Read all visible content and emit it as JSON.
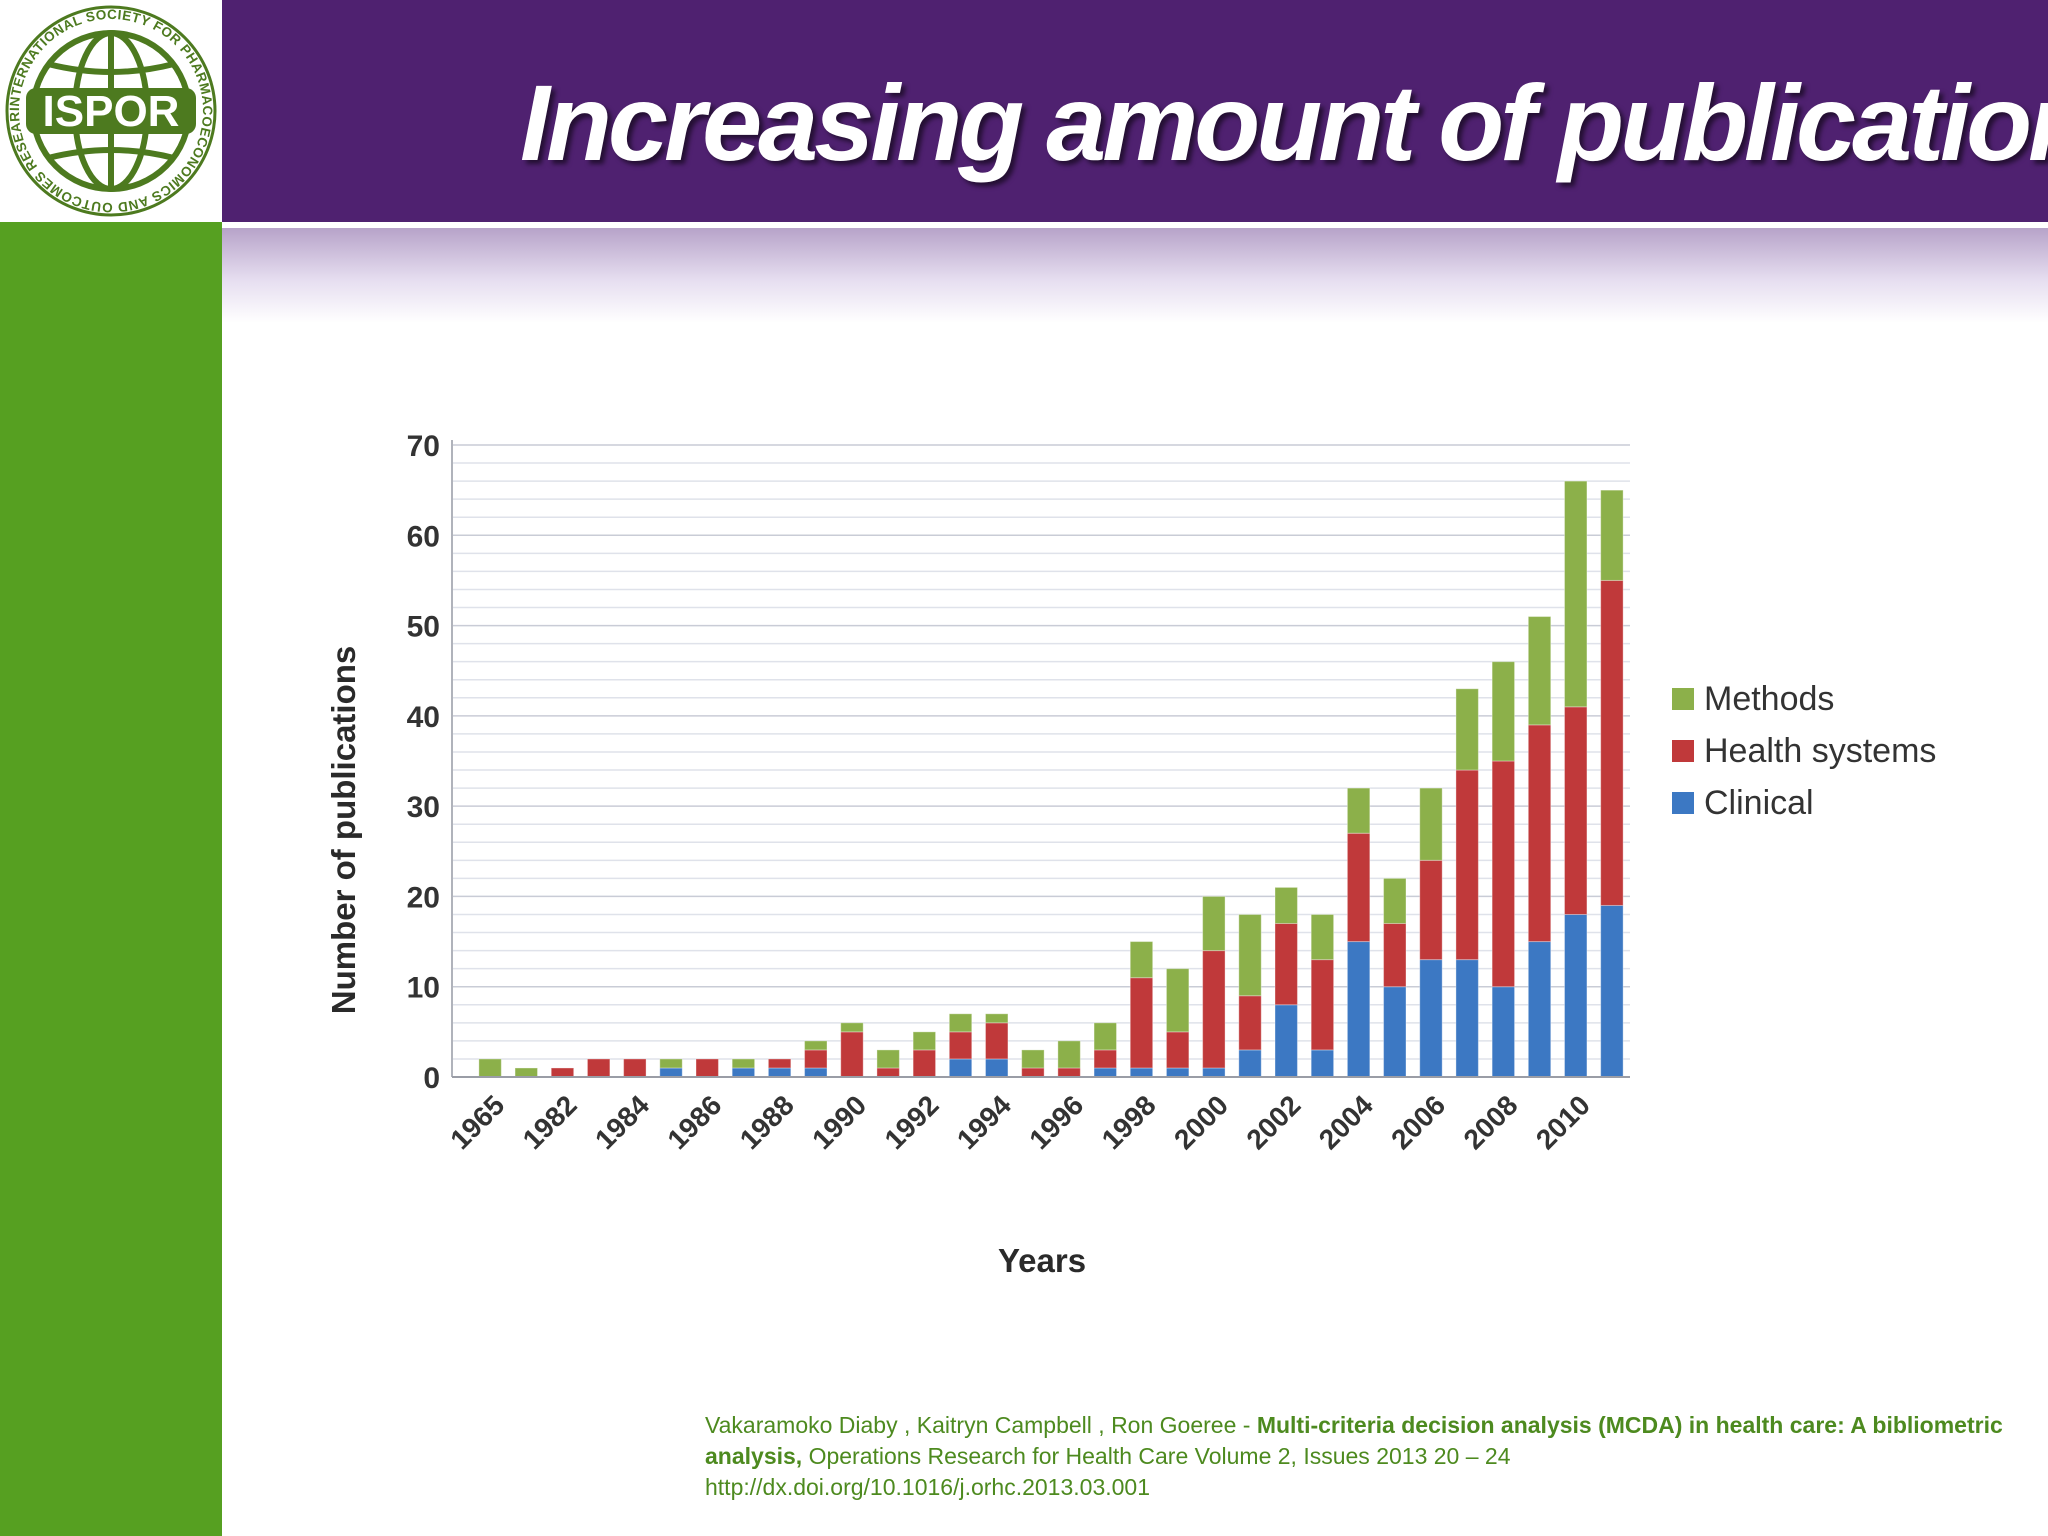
{
  "slide": {
    "title": "Increasing amount of publications",
    "colors": {
      "header": "#4f2170",
      "sidebar": "#56a021",
      "citation_text": "#4d8a1f"
    }
  },
  "logo": {
    "text": "ISPOR",
    "ring_text": "INTERNATIONAL SOCIETY FOR PHARMACOECONOMICS AND OUTCOMES RESEARCH•"
  },
  "chart_data": {
    "type": "bar",
    "stacked": true,
    "xlabel": "Years",
    "ylabel": "Number of publications",
    "ylim": [
      0,
      70
    ],
    "yticks": [
      0,
      10,
      20,
      30,
      40,
      50,
      60,
      70
    ],
    "x_tick_labels": [
      "1965",
      "1982",
      "1984",
      "1986",
      "1988",
      "1990",
      "1992",
      "1994",
      "1996",
      "1998",
      "2000",
      "2002",
      "2004",
      "2006",
      "2008",
      "2010"
    ],
    "categories": [
      "1965",
      "1981",
      "1982",
      "1983",
      "1984",
      "1985",
      "1986",
      "1987",
      "1988",
      "1989",
      "1990",
      "1991",
      "1992",
      "1993",
      "1994",
      "1995",
      "1996",
      "1997",
      "1998",
      "1999",
      "2000",
      "2001",
      "2002",
      "2003",
      "2004",
      "2005",
      "2006",
      "2007",
      "2008",
      "2009",
      "2010",
      "2011"
    ],
    "series": [
      {
        "name": "Clinical",
        "color": "#3c78c3",
        "values": [
          0,
          0,
          0,
          0,
          0,
          1,
          0,
          1,
          1,
          1,
          0,
          0,
          0,
          2,
          2,
          0,
          0,
          1,
          1,
          1,
          1,
          3,
          8,
          3,
          15,
          10,
          13,
          13,
          10,
          15,
          18,
          19
        ]
      },
      {
        "name": "Health systems",
        "color": "#c0393a",
        "values": [
          0,
          0,
          1,
          2,
          2,
          0,
          2,
          0,
          1,
          2,
          5,
          1,
          3,
          3,
          4,
          1,
          1,
          2,
          10,
          4,
          13,
          6,
          9,
          10,
          12,
          7,
          11,
          21,
          25,
          24,
          23,
          36
        ]
      },
      {
        "name": "Methods",
        "color": "#8cb04a",
        "values": [
          2,
          1,
          0,
          0,
          0,
          1,
          0,
          1,
          0,
          1,
          1,
          2,
          2,
          2,
          1,
          2,
          3,
          3,
          4,
          7,
          6,
          9,
          4,
          5,
          5,
          5,
          8,
          9,
          11,
          12,
          25,
          10
        ]
      }
    ],
    "legend": [
      "Methods",
      "Health systems",
      "Clinical"
    ],
    "legend_position": "right"
  },
  "citation": {
    "authors": "Vakaramoko  Diaby , Kaitryn  Campbell , Ron  Goeree - ",
    "title_bold": "Multi-criteria decision analysis (MCDA) in health care: A bibliometric analysis,",
    "journal": " Operations Research for Health Care Volume 2, Issues  2013 20 – 24",
    "doi": "http://dx.doi.org/10.1016/j.orhc.2013.03.001"
  }
}
